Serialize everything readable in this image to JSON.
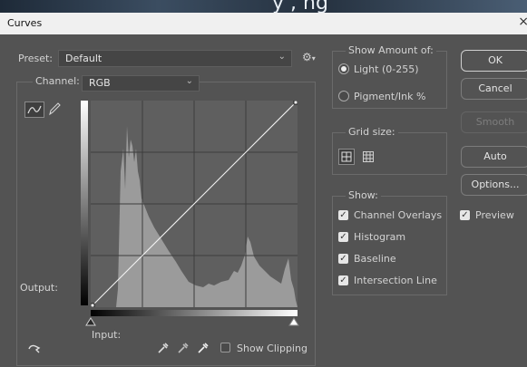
{
  "background_text": "y , ng",
  "window": {
    "title": "Curves",
    "close": "×"
  },
  "preset": {
    "label": "Preset:",
    "value": "Default"
  },
  "channel": {
    "label": "Channel:",
    "value": "RGB"
  },
  "graph": {
    "output_label": "Output:",
    "input_label": "Input:"
  },
  "show_clipping": {
    "label": "Show Clipping",
    "checked": false
  },
  "show_amount": {
    "title": "Show Amount of:",
    "options": [
      {
        "label": "Light  (0-255)",
        "selected": true
      },
      {
        "label": "Pigment/Ink %",
        "selected": false
      }
    ]
  },
  "grid_size": {
    "title": "Grid size:"
  },
  "show": {
    "title": "Show:",
    "items": [
      {
        "label": "Channel Overlays",
        "checked": true
      },
      {
        "label": "Histogram",
        "checked": true
      },
      {
        "label": "Baseline",
        "checked": true
      },
      {
        "label": "Intersection Line",
        "checked": true
      }
    ]
  },
  "buttons": {
    "ok": "OK",
    "cancel": "Cancel",
    "smooth": "Smooth",
    "auto": "Auto",
    "options": "Options..."
  },
  "preview": {
    "label": "Preview",
    "checked": true
  },
  "colors": {
    "graph_bg": "#5f5f5f",
    "histogram": "#9b9b9b",
    "curve": "#f4f4f4",
    "dialog_bg": "#535353"
  }
}
